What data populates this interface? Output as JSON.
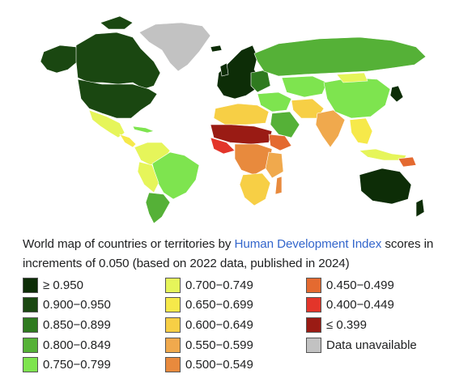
{
  "caption": {
    "prefix": "World map of countries or territories by ",
    "link": "Human Development Index",
    "suffix": " scores in increments of 0.050 (based on 2022 data, published in 2024)"
  },
  "legend": {
    "columns": [
      [
        {
          "label": "≥ 0.950",
          "color": "#0d2d07"
        },
        {
          "label": "0.900−0.950",
          "color": "#1a4711"
        },
        {
          "label": "0.850−0.899",
          "color": "#2f7a1f"
        },
        {
          "label": "0.800−0.849",
          "color": "#55b137"
        },
        {
          "label": "0.750−0.799",
          "color": "#7ee44f"
        }
      ],
      [
        {
          "label": "0.700−0.749",
          "color": "#e6f55a"
        },
        {
          "label": "0.650−0.699",
          "color": "#f6e94a"
        },
        {
          "label": "0.600−0.649",
          "color": "#f7cf45"
        },
        {
          "label": "0.550−0.599",
          "color": "#f0a94d"
        },
        {
          "label": "0.500−0.549",
          "color": "#e88a3d"
        }
      ],
      [
        {
          "label": "0.450−0.499",
          "color": "#e46a30"
        },
        {
          "label": "0.400−0.449",
          "color": "#e3352a"
        },
        {
          "label": "≤ 0.399",
          "color": "#9a1b14"
        },
        {
          "label": "Data unavailable",
          "color": "#c2c2c2"
        }
      ]
    ]
  }
}
